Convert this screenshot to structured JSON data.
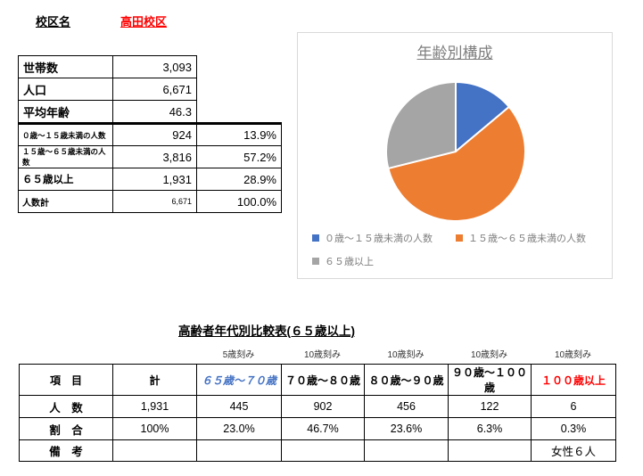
{
  "header": {
    "district_label": "校区名",
    "district_name": "高田校区"
  },
  "colors": {
    "accent_red": "#FF0000",
    "header_blue": "#4472C4",
    "chart_text": "#7F7F7F",
    "chart_border": "#D9D9D9"
  },
  "summary_table": {
    "rows": [
      {
        "label": "世帯数",
        "value": "3,093"
      },
      {
        "label": "人口",
        "value": "6,671"
      },
      {
        "label": "平均年齢",
        "value": "46.3"
      }
    ],
    "breakdown_rows": [
      {
        "label": "０歳～１５歳未満の人数",
        "value": "924",
        "pct": "13.9%"
      },
      {
        "label": "１５歳～６５歳未満の人数",
        "value": "3,816",
        "pct": "57.2%"
      },
      {
        "label": "６５歳以上",
        "value": "1,931",
        "pct": "28.9%"
      },
      {
        "label": "人数計",
        "value": "6,671",
        "pct": "100.0%"
      }
    ]
  },
  "chart_data": {
    "type": "pie",
    "title": "年齢別構成",
    "categories": [
      "０歳～１５歳未満の人数",
      "１５歳～６５歳未満の人数",
      "６５歳以上"
    ],
    "values": [
      13.9,
      57.2,
      28.9
    ],
    "counts": [
      924,
      3816,
      1931
    ],
    "colors": [
      "#4472C4",
      "#ED7D31",
      "#A5A5A5"
    ],
    "start_angle_deg": 0,
    "direction": "clockwise",
    "legend_position": "bottom"
  },
  "elderly_table": {
    "title": "高齢者年代別比較表(６５歳以上)",
    "interval_notes": [
      "5歳刻み",
      "10歳刻み",
      "10歳刻み",
      "10歳刻み",
      "10歳刻み"
    ],
    "header": {
      "item": "項　目",
      "total": "計",
      "cols": [
        "６５歳～７０歳",
        "７０歳～８０歳",
        "８０歳～９０歳",
        "９０歳～１００歳",
        "１００歳以上"
      ]
    },
    "rows": [
      {
        "label": "人　数",
        "cells": [
          "1,931",
          "445",
          "902",
          "456",
          "122",
          "6"
        ]
      },
      {
        "label": "割　合",
        "cells": [
          "100%",
          "23.0%",
          "46.7%",
          "23.6%",
          "6.3%",
          "0.3%"
        ]
      },
      {
        "label": "備　考",
        "cells": [
          "",
          "",
          "",
          "",
          "",
          "女性６人"
        ]
      }
    ]
  }
}
